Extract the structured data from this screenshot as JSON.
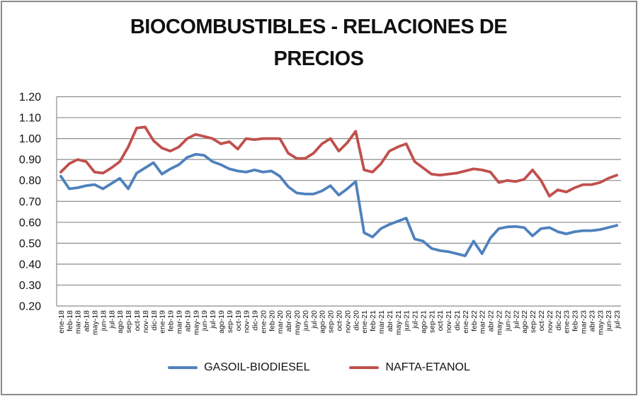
{
  "window": {
    "background": "#FFFFFF",
    "border_color": "#8A8A8A"
  },
  "chart_data": {
    "type": "line",
    "title": "BIOCOMBUSTIBLES - RELACIONES DE PRECIOS",
    "title_lines": [
      "BIOCOMBUSTIBLES - RELACIONES DE",
      "PRECIOS"
    ],
    "xlabel": "",
    "ylabel": "",
    "ylim": [
      0.2,
      1.2
    ],
    "ytick_step": 0.1,
    "y_tick_labels": [
      "1.20",
      "1.10",
      "1.00",
      "0.90",
      "0.80",
      "0.70",
      "0.60",
      "0.50",
      "0.40",
      "0.30",
      "0.20"
    ],
    "grid": true,
    "gridline_color": "#8C8C8C",
    "axis_text_color": "#111111",
    "legend_position": "bottom",
    "categories": [
      "ene-18",
      "feb-18",
      "mar-18",
      "abr-18",
      "may-18",
      "jun-18",
      "jul-18",
      "ago-18",
      "sep-18",
      "oct-18",
      "nov-18",
      "dic-18",
      "ene-19",
      "feb-19",
      "mar-19",
      "abr-19",
      "may-19",
      "jun-19",
      "jul-19",
      "ago-19",
      "sep-19",
      "oct-19",
      "nov-19",
      "dic-19",
      "ene-20",
      "feb-20",
      "mar-20",
      "abr-20",
      "may-20",
      "jun-20",
      "jul-20",
      "ago-20",
      "sep-20",
      "oct-20",
      "nov-20",
      "dic-20",
      "ene-21",
      "feb-21",
      "mar-21",
      "abr-21",
      "may-21",
      "jun-21",
      "jul-21",
      "ago-21",
      "sep-21",
      "oct-21",
      "nov-21",
      "dic-21",
      "ene-22",
      "feb-22",
      "mar-22",
      "abr-22",
      "may-22",
      "jun-22",
      "jul-22",
      "ago-22",
      "sep-22",
      "oct-22",
      "nov-22",
      "dic-22",
      "ene-23",
      "feb-23",
      "mar-23",
      "abr-23",
      "may-23",
      "jun-23",
      "jul-23"
    ],
    "series": [
      {
        "name": "GASOIL-BIODIESEL",
        "color": "#4F81BD",
        "values": [
          0.82,
          0.76,
          0.765,
          0.775,
          0.78,
          0.76,
          0.785,
          0.81,
          0.76,
          0.835,
          0.86,
          0.885,
          0.83,
          0.855,
          0.875,
          0.91,
          0.925,
          0.92,
          0.89,
          0.875,
          0.855,
          0.845,
          0.84,
          0.85,
          0.84,
          0.845,
          0.82,
          0.77,
          0.74,
          0.735,
          0.735,
          0.75,
          0.775,
          0.73,
          0.76,
          0.795,
          0.55,
          0.53,
          0.57,
          0.59,
          0.605,
          0.62,
          0.52,
          0.51,
          0.475,
          0.465,
          0.46,
          0.45,
          0.44,
          0.51,
          0.45,
          0.525,
          0.57,
          0.578,
          0.58,
          0.575,
          0.535,
          0.57,
          0.575,
          0.555,
          0.545,
          0.555,
          0.56,
          0.56,
          0.565,
          0.575,
          0.585
        ]
      },
      {
        "name": "NAFTA-ETANOL",
        "color": "#C0504D",
        "values": [
          0.84,
          0.88,
          0.9,
          0.89,
          0.84,
          0.835,
          0.86,
          0.89,
          0.96,
          1.05,
          1.055,
          0.99,
          0.955,
          0.94,
          0.96,
          1.0,
          1.02,
          1.01,
          1.0,
          0.975,
          0.985,
          0.95,
          1.0,
          0.995,
          1.0,
          1.0,
          1.0,
          0.93,
          0.905,
          0.905,
          0.93,
          0.975,
          1.0,
          0.94,
          0.98,
          1.035,
          0.85,
          0.84,
          0.88,
          0.94,
          0.96,
          0.975,
          0.89,
          0.86,
          0.83,
          0.825,
          0.83,
          0.835,
          0.845,
          0.855,
          0.85,
          0.84,
          0.79,
          0.8,
          0.795,
          0.805,
          0.85,
          0.8,
          0.725,
          0.755,
          0.745,
          0.765,
          0.78,
          0.78,
          0.79,
          0.81,
          0.825
        ]
      }
    ]
  }
}
